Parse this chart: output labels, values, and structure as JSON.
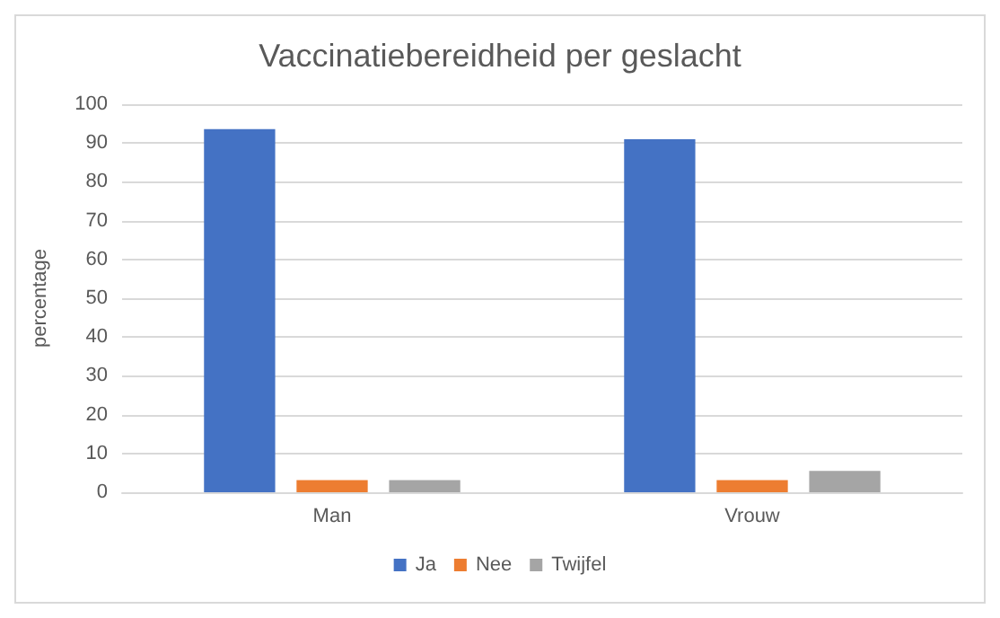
{
  "chart_data": {
    "type": "bar",
    "title": "Vaccinatiebereidheid per geslacht",
    "ylabel": "percentage",
    "categories": [
      "Man",
      "Vrouw"
    ],
    "series": [
      {
        "name": "Ja",
        "color": "#4472c4",
        "values": [
          93.6,
          91.0
        ]
      },
      {
        "name": "Nee",
        "color": "#ed7d31",
        "values": [
          3.1,
          3.1
        ]
      },
      {
        "name": "Twijfel",
        "color": "#a5a5a5",
        "values": [
          3.1,
          5.5
        ]
      }
    ],
    "ylim": [
      0,
      100
    ],
    "yticks": [
      0,
      10,
      20,
      30,
      40,
      50,
      60,
      70,
      80,
      90,
      100
    ],
    "grid": "y",
    "legend": "bottom"
  }
}
